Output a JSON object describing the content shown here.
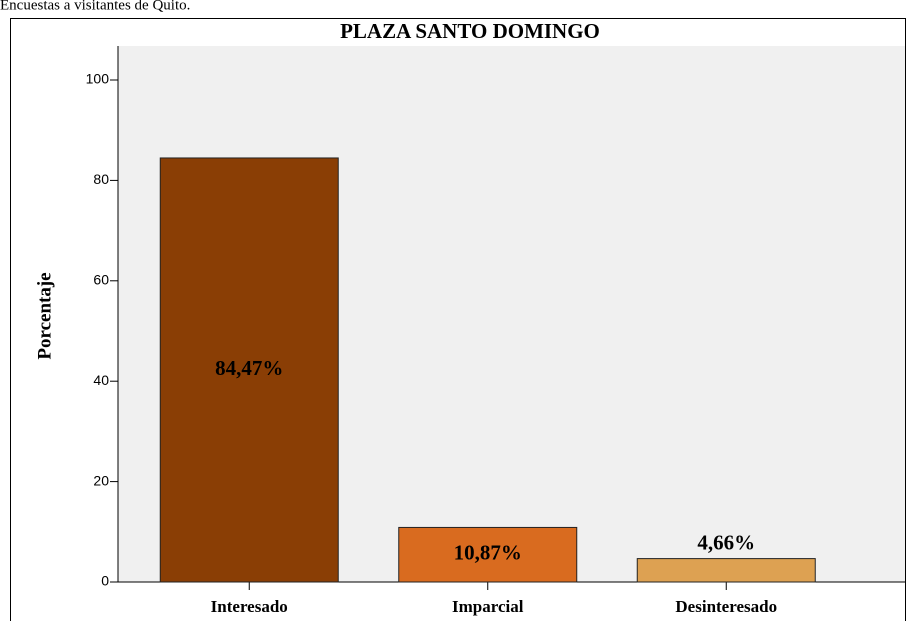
{
  "caption": "Encuestas a visitantes de Quito.",
  "chart_data": {
    "type": "bar",
    "title": "PLAZA SANTO DOMINGO",
    "ylabel": "Porcentaje",
    "categories": [
      "Interesado",
      "Imparcial",
      "Desinteresado"
    ],
    "values": [
      84.47,
      10.87,
      4.66
    ],
    "value_labels": [
      "84,47%",
      "10,87%",
      "4,66%"
    ],
    "colors": [
      "#8a3e05",
      "#d96b1f",
      "#dda152"
    ],
    "ylim": [
      0,
      100
    ],
    "yticks": [
      0,
      20,
      40,
      60,
      80,
      100
    ]
  }
}
